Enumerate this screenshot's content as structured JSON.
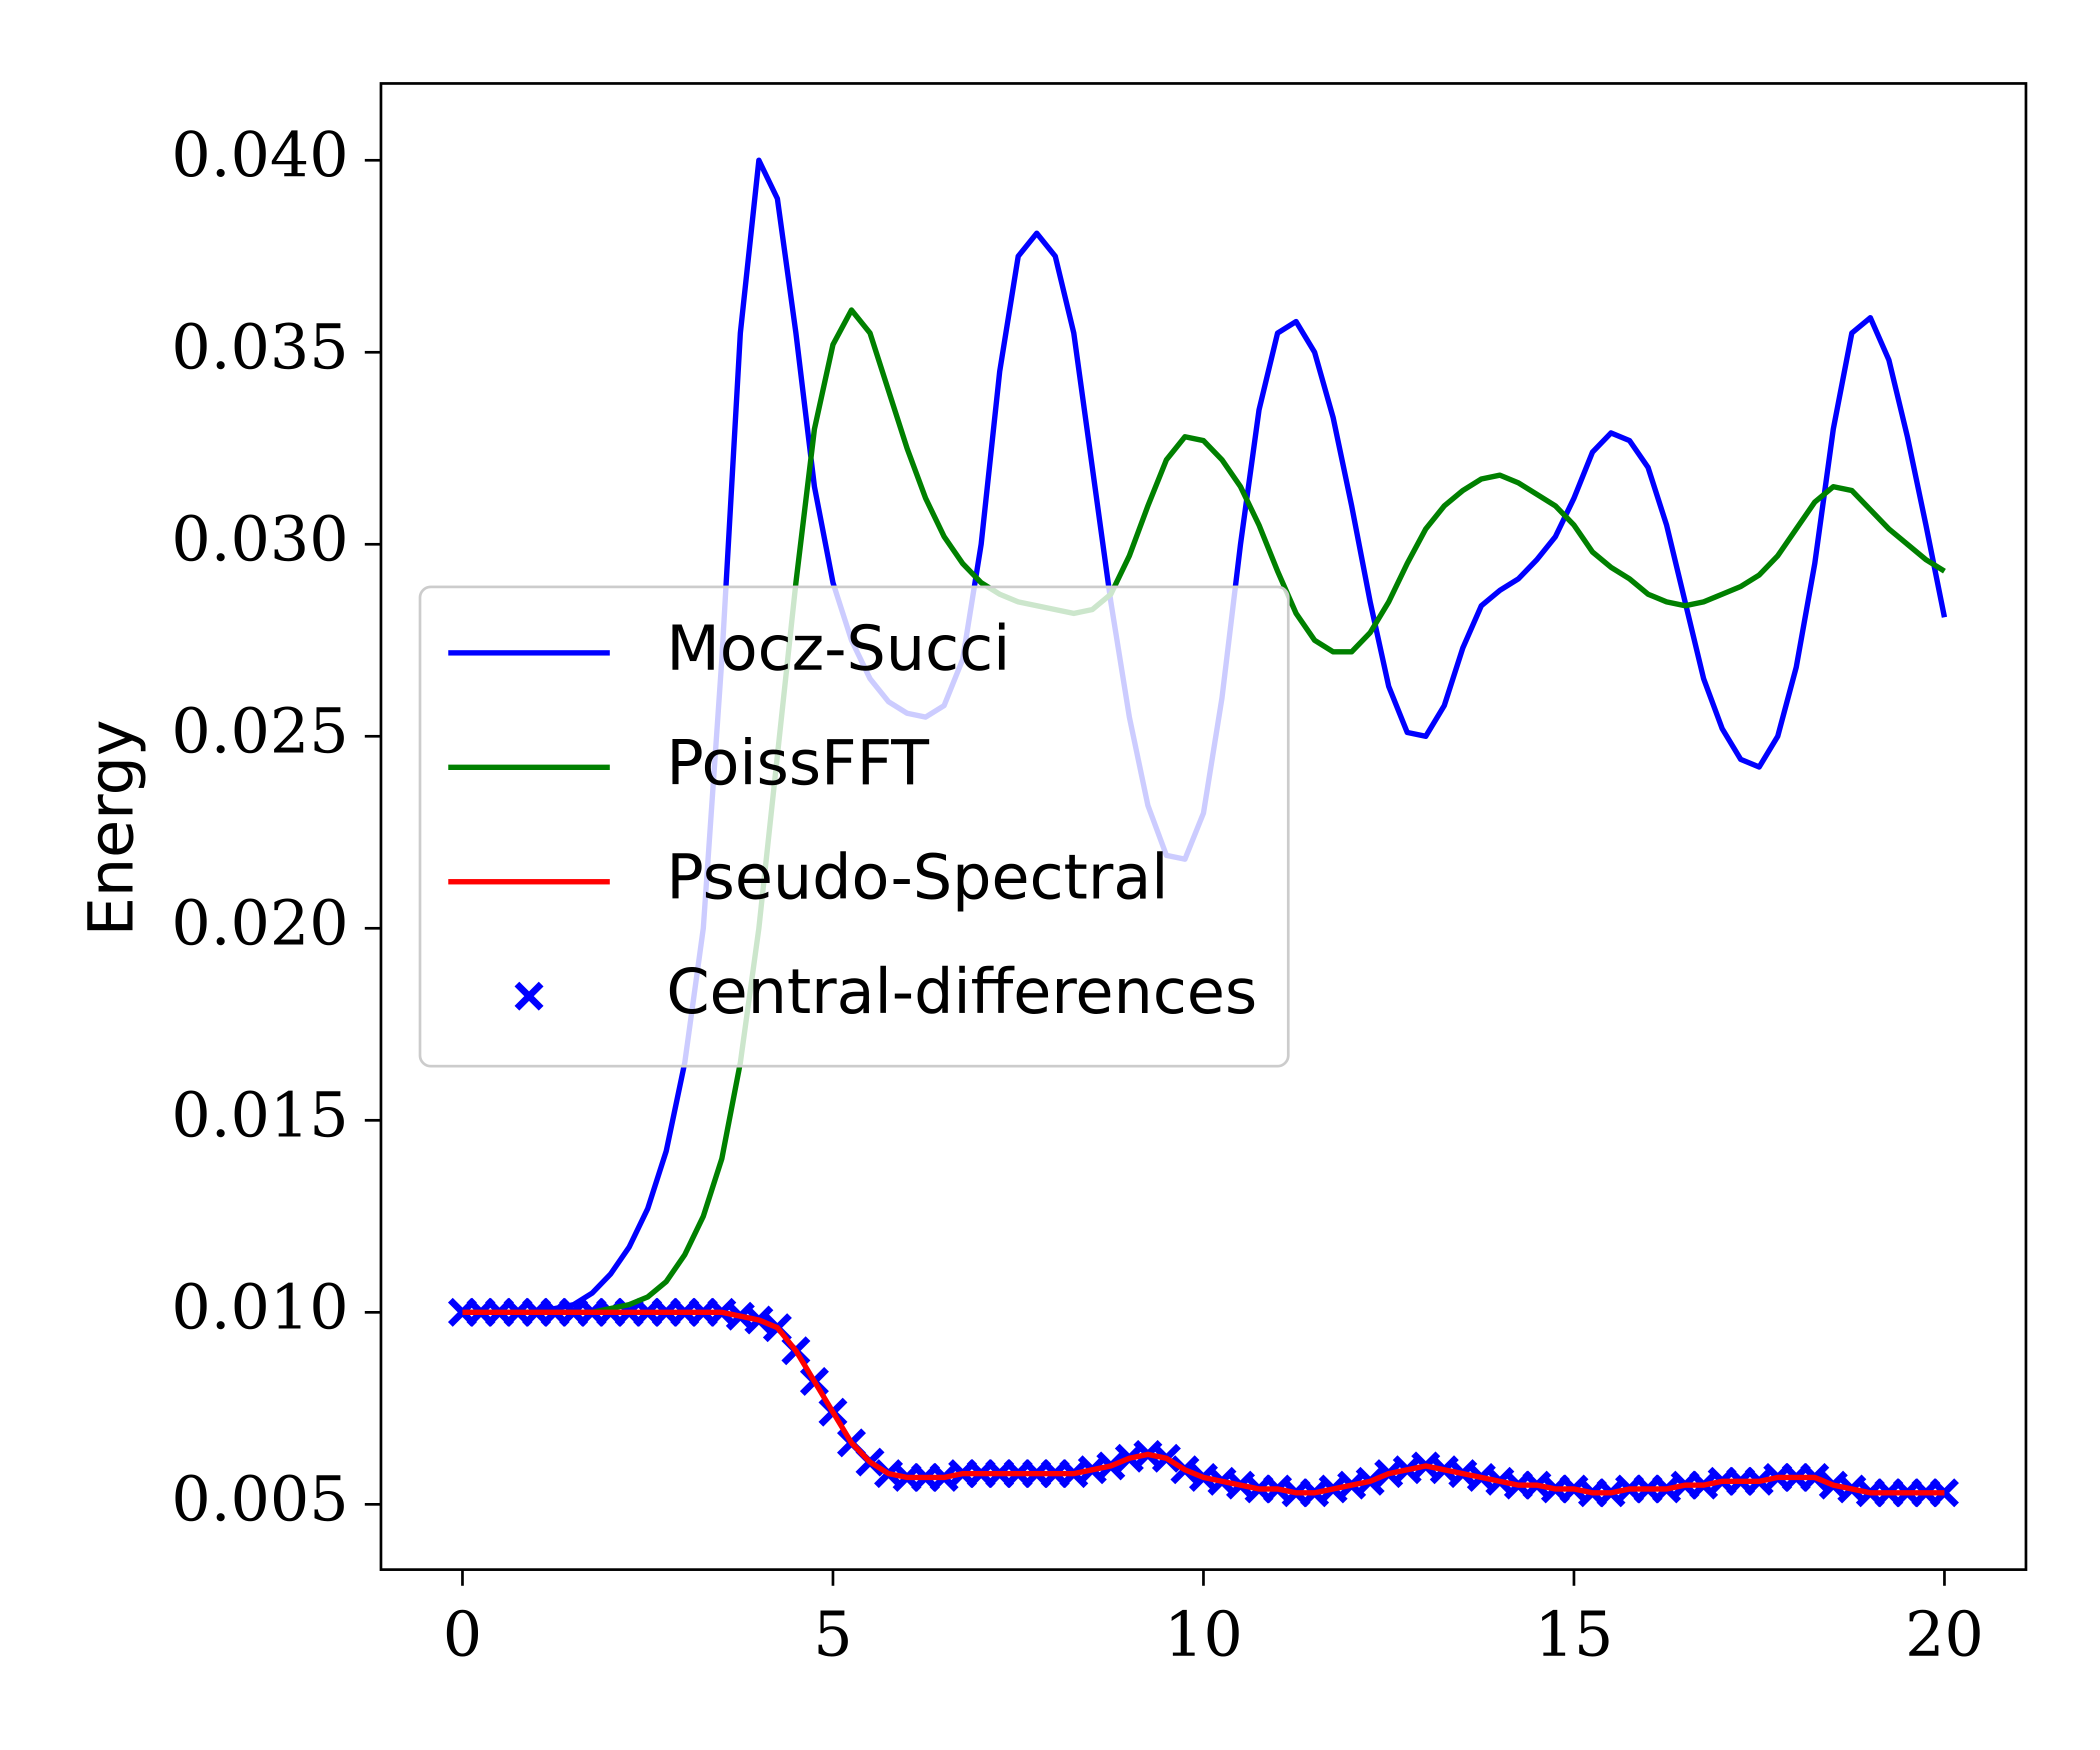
{
  "chart_data": {
    "type": "line",
    "ylabel": "Energy",
    "x": [
      0,
      0.25,
      0.5,
      0.75,
      1,
      1.25,
      1.5,
      1.75,
      2,
      2.25,
      2.5,
      2.75,
      3,
      3.25,
      3.5,
      3.75,
      4,
      4.25,
      4.5,
      4.75,
      5,
      5.25,
      5.5,
      5.75,
      6,
      6.25,
      6.5,
      6.75,
      7,
      7.25,
      7.5,
      7.75,
      8,
      8.25,
      8.5,
      8.75,
      9,
      9.25,
      9.5,
      9.75,
      10,
      10.25,
      10.5,
      10.75,
      11,
      11.25,
      11.5,
      11.75,
      12,
      12.25,
      12.5,
      12.75,
      13,
      13.25,
      13.5,
      13.75,
      14,
      14.25,
      14.5,
      14.75,
      15,
      15.25,
      15.5,
      15.75,
      16,
      16.25,
      16.5,
      16.75,
      17,
      17.25,
      17.5,
      17.75,
      18,
      18.25,
      18.5,
      18.75,
      19,
      19.25,
      19.5,
      19.75,
      20
    ],
    "series": [
      {
        "name": "Mocz-Succi",
        "color": "#0000ff",
        "values": [
          0.01,
          0.01,
          0.01,
          0.01,
          0.01,
          0.0101,
          0.0102,
          0.0105,
          0.011,
          0.0117,
          0.0127,
          0.0142,
          0.0165,
          0.02,
          0.027,
          0.0355,
          0.04,
          0.039,
          0.0355,
          0.0315,
          0.029,
          0.0275,
          0.0265,
          0.0259,
          0.0256,
          0.0255,
          0.0258,
          0.027,
          0.03,
          0.0345,
          0.0375,
          0.0381,
          0.0375,
          0.0355,
          0.032,
          0.0285,
          0.0255,
          0.0232,
          0.0219,
          0.0218,
          0.023,
          0.026,
          0.03,
          0.0335,
          0.0355,
          0.0358,
          0.035,
          0.0333,
          0.031,
          0.0285,
          0.0263,
          0.0251,
          0.025,
          0.0258,
          0.0273,
          0.0284,
          0.0288,
          0.0291,
          0.0296,
          0.0302,
          0.0312,
          0.0324,
          0.0329,
          0.0327,
          0.032,
          0.0305,
          0.0285,
          0.0265,
          0.0252,
          0.0244,
          0.0242,
          0.025,
          0.0268,
          0.0295,
          0.033,
          0.0355,
          0.0359,
          0.0348,
          0.0328,
          0.0305,
          0.0281
        ]
      },
      {
        "name": "PoissFFT",
        "color": "#008000",
        "values": [
          0.01,
          0.01,
          0.01,
          0.01,
          0.01,
          0.01,
          0.01,
          0.01,
          0.0101,
          0.0102,
          0.0104,
          0.0108,
          0.0115,
          0.0125,
          0.014,
          0.0165,
          0.02,
          0.0245,
          0.029,
          0.033,
          0.0352,
          0.0361,
          0.0355,
          0.034,
          0.0325,
          0.0312,
          0.0302,
          0.0295,
          0.029,
          0.0287,
          0.0285,
          0.0284,
          0.0283,
          0.0282,
          0.0283,
          0.0287,
          0.0297,
          0.031,
          0.0322,
          0.0328,
          0.0327,
          0.0322,
          0.0315,
          0.0305,
          0.0293,
          0.0282,
          0.0275,
          0.0272,
          0.0272,
          0.0277,
          0.0285,
          0.0295,
          0.0304,
          0.031,
          0.0314,
          0.0317,
          0.0318,
          0.0316,
          0.0313,
          0.031,
          0.0305,
          0.0298,
          0.0294,
          0.0291,
          0.0287,
          0.0285,
          0.0284,
          0.0285,
          0.0287,
          0.0289,
          0.0292,
          0.0297,
          0.0304,
          0.0311,
          0.0315,
          0.0314,
          0.0309,
          0.0304,
          0.03,
          0.0296,
          0.0293
        ]
      },
      {
        "name": "Pseudo-Spectral",
        "color": "#ff0000",
        "values": [
          0.01,
          0.01,
          0.01,
          0.01,
          0.01,
          0.01,
          0.01,
          0.01,
          0.01,
          0.01,
          0.01,
          0.01,
          0.01,
          0.01,
          0.01,
          0.0099,
          0.0098,
          0.0096,
          0.009,
          0.0082,
          0.0074,
          0.0066,
          0.0061,
          0.0058,
          0.0057,
          0.0057,
          0.0057,
          0.0058,
          0.0058,
          0.0058,
          0.0058,
          0.0058,
          0.0058,
          0.0058,
          0.0059,
          0.006,
          0.0062,
          0.0063,
          0.0062,
          0.0059,
          0.0057,
          0.0056,
          0.0055,
          0.0054,
          0.0054,
          0.0053,
          0.0053,
          0.0054,
          0.0055,
          0.0056,
          0.0058,
          0.0059,
          0.006,
          0.0059,
          0.0058,
          0.0057,
          0.0056,
          0.0055,
          0.0055,
          0.0054,
          0.0054,
          0.0053,
          0.0053,
          0.0054,
          0.0054,
          0.0054,
          0.0055,
          0.0055,
          0.0056,
          0.0056,
          0.0056,
          0.0057,
          0.0057,
          0.0057,
          0.0055,
          0.0054,
          0.0053,
          0.0053,
          0.0053,
          0.0053,
          0.0053
        ]
      },
      {
        "name": "Central-differences",
        "color": "#0000ff",
        "marker": "x",
        "linestyle": "none",
        "values": [
          0.01,
          0.01,
          0.01,
          0.01,
          0.01,
          0.01,
          0.01,
          0.01,
          0.01,
          0.01,
          0.01,
          0.01,
          0.01,
          0.01,
          0.01,
          0.0099,
          0.0098,
          0.0096,
          0.009,
          0.0082,
          0.0074,
          0.0066,
          0.0061,
          0.0058,
          0.0057,
          0.0057,
          0.0057,
          0.0058,
          0.0058,
          0.0058,
          0.0058,
          0.0058,
          0.0058,
          0.0058,
          0.0059,
          0.006,
          0.0062,
          0.0063,
          0.0062,
          0.0059,
          0.0057,
          0.0056,
          0.0055,
          0.0054,
          0.0054,
          0.0053,
          0.0053,
          0.0054,
          0.0055,
          0.0056,
          0.0058,
          0.0059,
          0.006,
          0.0059,
          0.0058,
          0.0057,
          0.0056,
          0.0055,
          0.0055,
          0.0054,
          0.0054,
          0.0053,
          0.0053,
          0.0054,
          0.0054,
          0.0054,
          0.0055,
          0.0055,
          0.0056,
          0.0056,
          0.0056,
          0.0057,
          0.0057,
          0.0057,
          0.0055,
          0.0054,
          0.0053,
          0.0053,
          0.0053,
          0.0053,
          0.0053
        ]
      }
    ],
    "xlim": [
      -1.1,
      21.1
    ],
    "ylim": [
      0.0033,
      0.042
    ],
    "xticks": [
      0,
      5,
      10,
      15,
      20
    ],
    "yticks": [
      0.005,
      {
        "value": 0.01,
        "label": "0.010"
      },
      0.015,
      {
        "value": 0.02,
        "label": "0.020"
      },
      0.025,
      {
        "value": 0.03,
        "label": "0.030"
      },
      0.035,
      {
        "value": 0.04,
        "label": "0.040"
      }
    ],
    "legend": "center left",
    "grid": false
  }
}
